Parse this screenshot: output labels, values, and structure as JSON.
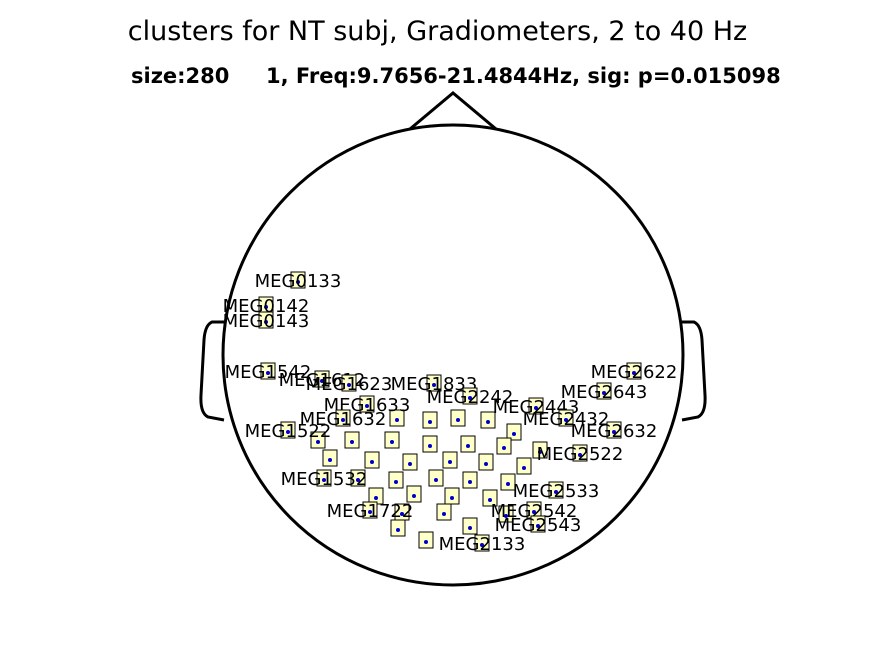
{
  "title": "clusters for NT subj, Gradiometers, 2 to 40 Hz",
  "subtitle": "size:280     1, Freq:9.7656-21.4844Hz, sig: p=0.015098",
  "colors": {
    "box_fill": "#ffffc8",
    "dot": "#0000cc",
    "outline": "#000000"
  },
  "sensors": [
    "MEG0133",
    "MEG0142",
    "MEG0143",
    "MEG1542",
    "MEG1612",
    "MEG1623",
    "MEG1833",
    "MEG2622",
    "MEG2643",
    "MEG2242",
    "MEG2443",
    "MEG1633",
    "MEG2432",
    "MEG1632",
    "MEG2632",
    "MEG1522",
    "MEG2522",
    "MEG1532",
    "MEG2533",
    "MEG1722",
    "MEG2542",
    "MEG2543",
    "MEG2133"
  ]
}
